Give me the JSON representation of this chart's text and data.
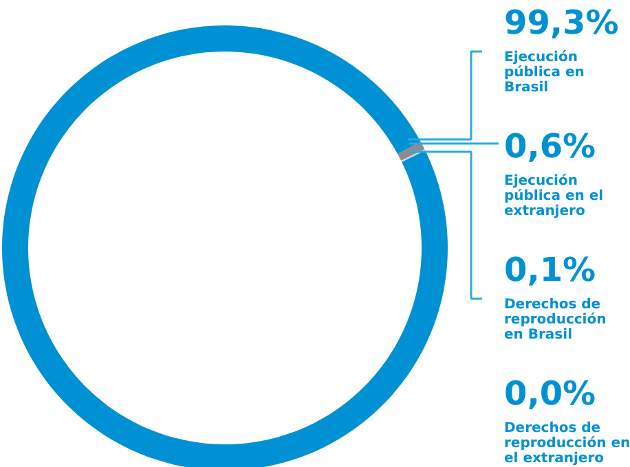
{
  "chart_data": {
    "type": "donut",
    "categories": [
      "Ejecución\npública en\nBrasil",
      "Ejecución\npública en el\nextranjero",
      "Derechos de\nreproducción\nen Brasil",
      "Derechos de\nreproducción en\nel extranjero"
    ],
    "values": [
      99.3,
      0.6,
      0.1,
      0.0
    ],
    "colors": [
      "#0091d5",
      "#8c8c8c",
      "#d0dde5",
      "#e6e6e6"
    ],
    "value_labels": [
      "99,3%",
      "0,6%",
      "0,1%",
      "0,0%"
    ]
  }
}
